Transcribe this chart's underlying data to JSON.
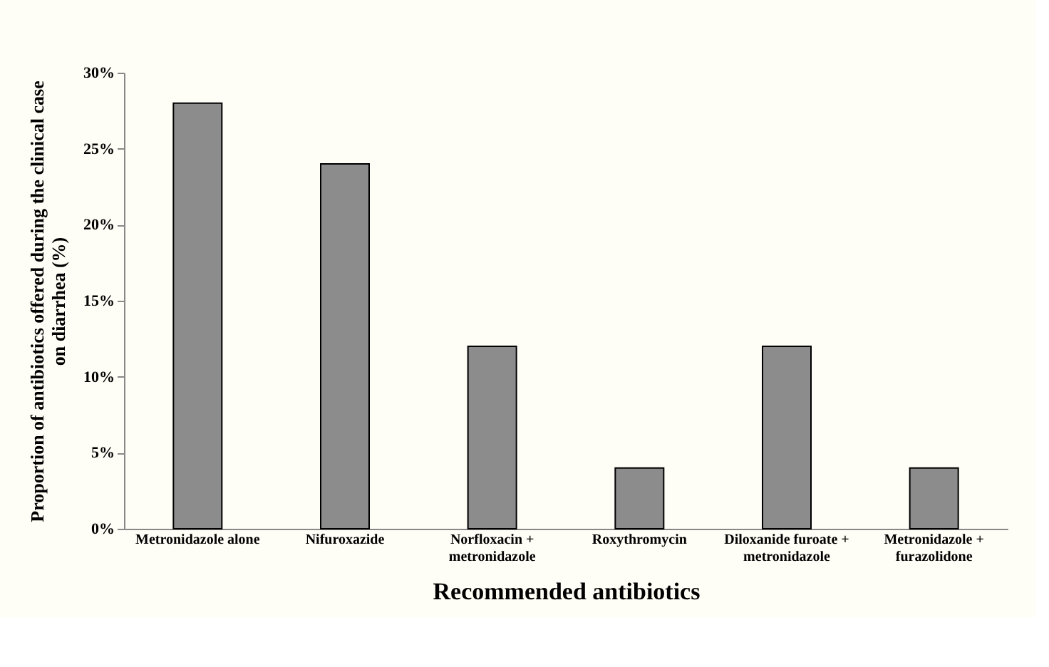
{
  "chart_data": {
    "type": "bar",
    "categories": [
      "Metronidazole alone",
      "Nifuroxazide",
      "Norfloxacin + metronidazole",
      "Roxythromycin",
      "Diloxanide furoate + metronidazole",
      "Metronidazole + furazolidone"
    ],
    "values": [
      28,
      24,
      12,
      4,
      12,
      4
    ],
    "color": "#8c8c8c",
    "xlabel": "Recommended antibiotics",
    "ylabel": "Proportion of antibiotics offered during the clinical case on diarrhea (%)",
    "ylim": [
      0,
      30
    ],
    "yticks": [
      {
        "value": 0,
        "label": "0%"
      },
      {
        "value": 5,
        "label": "5%"
      },
      {
        "value": 10,
        "label": "10%"
      },
      {
        "value": 15,
        "label": "15%"
      },
      {
        "value": 20,
        "label": "20%"
      },
      {
        "value": 25,
        "label": "25%"
      },
      {
        "value": 30,
        "label": "30%"
      }
    ],
    "grid": false
  }
}
